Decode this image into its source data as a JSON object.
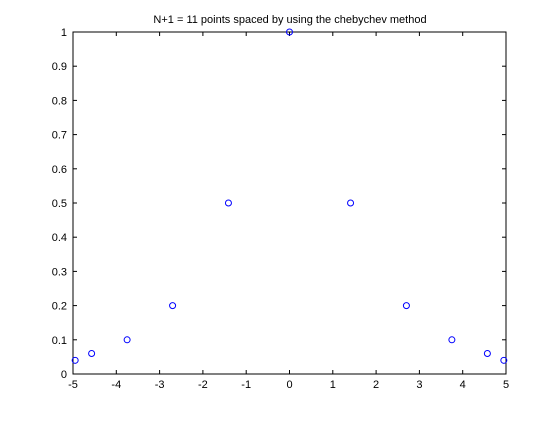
{
  "chart_data": {
    "type": "scatter",
    "title": "N+1 = 11 points spaced by using the chebychev method",
    "xlabel": "",
    "ylabel": "",
    "xlim": [
      -5,
      5
    ],
    "ylim": [
      0,
      1
    ],
    "xticks": [
      "-5",
      "-4",
      "-3",
      "-2",
      "-1",
      "0",
      "1",
      "2",
      "3",
      "4",
      "5"
    ],
    "yticks": [
      "0",
      "0.1",
      "0.2",
      "0.3",
      "0.4",
      "0.5",
      "0.6",
      "0.7",
      "0.8",
      "0.9",
      "1"
    ],
    "grid": false,
    "marker": "circle",
    "marker_color": "#0000ff",
    "series": [
      {
        "x": [
          -4.95,
          -4.57,
          -3.75,
          -2.7,
          -1.41,
          0,
          1.41,
          2.7,
          3.75,
          4.57,
          4.95
        ],
        "y": [
          0.04,
          0.06,
          0.1,
          0.2,
          0.5,
          1.0,
          0.5,
          0.2,
          0.1,
          0.06,
          0.04
        ]
      }
    ]
  }
}
